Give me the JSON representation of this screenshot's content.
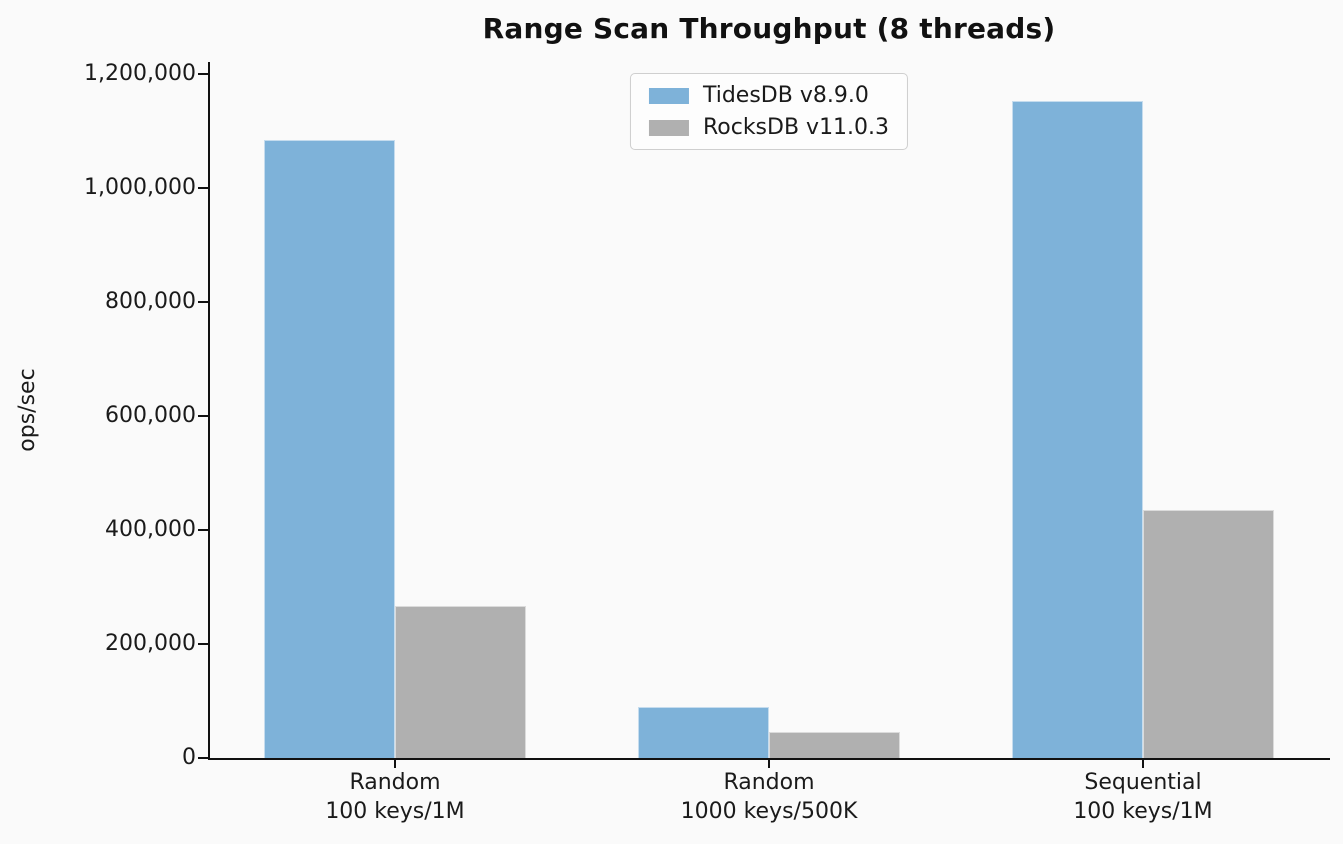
{
  "figure": {
    "background": "#fafafa",
    "axis_color": "#111111",
    "text_color": "#1a1a1a"
  },
  "chart_data": {
    "type": "bar",
    "title": "Range Scan Throughput (8 threads)",
    "xlabel": "",
    "ylabel": "ops/sec",
    "categories": [
      "Random\n100 keys/1M",
      "Random\n1000 keys/500K",
      "Sequential\n100 keys/1M"
    ],
    "series": [
      {
        "name": "TidesDB v8.9.0",
        "color": "#7eb2d9",
        "values": [
          1085000,
          90000,
          1152000
        ]
      },
      {
        "name": "RocksDB v11.0.3",
        "color": "#b0b0b0",
        "values": [
          266000,
          45000,
          435000
        ]
      }
    ],
    "ylim": [
      0,
      1200000
    ],
    "yticks": [
      {
        "value": 0,
        "label": "0"
      },
      {
        "value": 200000,
        "label": "200,000"
      },
      {
        "value": 400000,
        "label": "400,000"
      },
      {
        "value": 600000,
        "label": "600,000"
      },
      {
        "value": 800000,
        "label": "800,000"
      },
      {
        "value": 1000000,
        "label": "1,000,000"
      },
      {
        "value": 1200000,
        "label": "1,200,000"
      }
    ],
    "grid": false,
    "legend_position": "upper center"
  }
}
